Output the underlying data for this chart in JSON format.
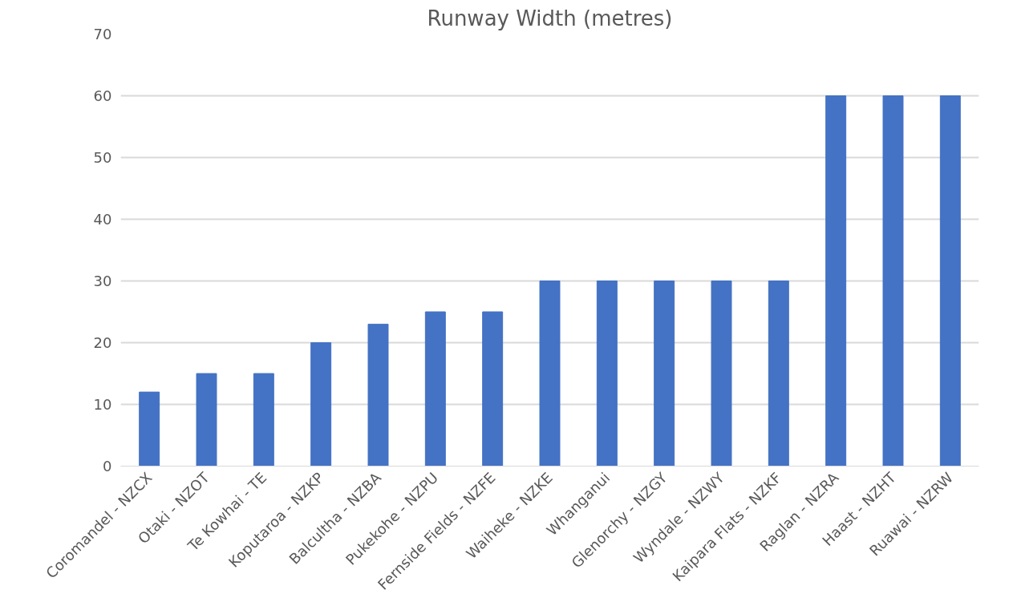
{
  "chart_data": {
    "type": "bar",
    "title": "Runway Width (metres)",
    "categories": [
      "Coromandel - NZCX",
      "Otaki - NZOT",
      "Te Kowhai - TE",
      "Koputaroa - NZKP",
      "Balcultha - NZBA",
      "Pukekohe - NZPU",
      "Fernside Fields - NZFE",
      "Waiheke - NZKE",
      "Whanganui",
      "Glenorchy - NZGY",
      "Wyndale - NZWY",
      "Kaipara Flats - NZKF",
      "Raglan - NZRA",
      "Haast - NZHT",
      "Ruawai - NZRW"
    ],
    "values": [
      12,
      15,
      15,
      20,
      23,
      25,
      25,
      30,
      30,
      30,
      30,
      30,
      60,
      60,
      60
    ],
    "color": "#4472c4",
    "ylim": [
      0,
      70
    ],
    "yticks": [
      0,
      10,
      20,
      30,
      40,
      50,
      60,
      70
    ],
    "grid": "y"
  }
}
